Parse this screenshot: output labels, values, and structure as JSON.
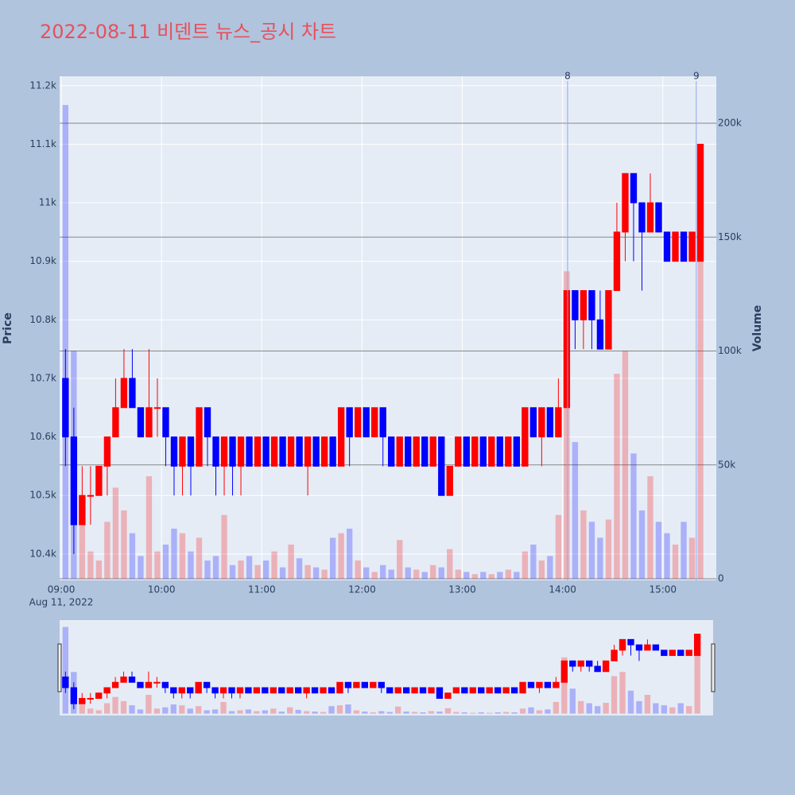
{
  "chart_data": {
    "type": "candlestick",
    "title": "2022-08-11 비덴트 뉴스_공시 차트",
    "y_label": "Price",
    "y2_label": "Volume",
    "x_date_label": "Aug 11, 2022",
    "increasing_color": "#ff0000",
    "decreasing_color": "#0000ff",
    "x": [
      "09:00",
      "09:05",
      "09:10",
      "09:15",
      "09:20",
      "09:25",
      "09:30",
      "09:35",
      "09:40",
      "09:45",
      "09:50",
      "09:55",
      "10:00",
      "10:05",
      "10:10",
      "10:15",
      "10:20",
      "10:25",
      "10:30",
      "10:35",
      "10:40",
      "10:45",
      "10:50",
      "10:55",
      "11:00",
      "11:05",
      "11:10",
      "11:15",
      "11:20",
      "11:25",
      "11:30",
      "11:35",
      "11:40",
      "11:45",
      "11:50",
      "11:55",
      "12:00",
      "12:05",
      "12:10",
      "12:15",
      "12:20",
      "12:25",
      "12:30",
      "12:35",
      "12:40",
      "12:45",
      "12:50",
      "12:55",
      "13:00",
      "13:05",
      "13:10",
      "13:15",
      "13:20",
      "13:25",
      "13:30",
      "13:35",
      "13:40",
      "13:45",
      "13:50",
      "13:55",
      "14:00",
      "14:05",
      "14:10",
      "14:15",
      "14:20",
      "14:25",
      "14:30",
      "14:35",
      "14:40",
      "14:45",
      "14:50",
      "14:55",
      "15:00",
      "15:05",
      "15:10",
      "15:15",
      "15:20"
    ],
    "open": [
      10700,
      10600,
      10450,
      10500,
      10500,
      10550,
      10600,
      10650,
      10700,
      10650,
      10600,
      10650,
      10650,
      10600,
      10550,
      10600,
      10550,
      10650,
      10600,
      10550,
      10600,
      10550,
      10600,
      10550,
      10600,
      10550,
      10600,
      10550,
      10600,
      10550,
      10600,
      10550,
      10600,
      10550,
      10650,
      10600,
      10650,
      10600,
      10650,
      10600,
      10550,
      10600,
      10550,
      10600,
      10550,
      10600,
      10500,
      10550,
      10600,
      10550,
      10600,
      10550,
      10600,
      10550,
      10600,
      10550,
      10650,
      10600,
      10650,
      10600,
      10650,
      10850,
      10800,
      10850,
      10800,
      10750,
      10850,
      10950,
      11050,
      11000,
      10950,
      11000,
      10950,
      10900,
      10950,
      10900,
      10900
    ],
    "high": [
      10750,
      10650,
      10550,
      10550,
      10550,
      10600,
      10700,
      10750,
      10750,
      10650,
      10750,
      10700,
      10650,
      10600,
      10600,
      10600,
      10650,
      10650,
      10600,
      10600,
      10600,
      10600,
      10600,
      10600,
      10600,
      10600,
      10600,
      10600,
      10600,
      10600,
      10600,
      10600,
      10600,
      10650,
      10650,
      10650,
      10650,
      10650,
      10650,
      10600,
      10600,
      10600,
      10600,
      10600,
      10600,
      10600,
      10550,
      10600,
      10600,
      10600,
      10600,
      10600,
      10600,
      10600,
      10600,
      10650,
      10650,
      10650,
      10650,
      10700,
      10850,
      10850,
      10850,
      10850,
      10850,
      10850,
      11000,
      11050,
      11050,
      11000,
      11050,
      11000,
      10950,
      10950,
      10950,
      10950,
      11100
    ],
    "low": [
      10550,
      10400,
      10450,
      10450,
      10500,
      10500,
      10600,
      10650,
      10650,
      10600,
      10600,
      10600,
      10550,
      10500,
      10500,
      10500,
      10550,
      10550,
      10500,
      10500,
      10500,
      10500,
      10550,
      10550,
      10550,
      10550,
      10550,
      10550,
      10550,
      10500,
      10550,
      10550,
      10550,
      10550,
      10550,
      10600,
      10600,
      10600,
      10550,
      10550,
      10550,
      10550,
      10550,
      10550,
      10550,
      10500,
      10500,
      10550,
      10550,
      10550,
      10550,
      10550,
      10550,
      10550,
      10550,
      10550,
      10600,
      10550,
      10600,
      10600,
      10650,
      10750,
      10750,
      10750,
      10750,
      10750,
      10850,
      10900,
      10900,
      10850,
      10950,
      10950,
      10900,
      10900,
      10900,
      10900,
      10900
    ],
    "close": [
      10600,
      10450,
      10500,
      10500,
      10550,
      10600,
      10650,
      10700,
      10650,
      10600,
      10650,
      10650,
      10600,
      10550,
      10600,
      10550,
      10650,
      10600,
      10550,
      10600,
      10550,
      10600,
      10550,
      10600,
      10550,
      10600,
      10550,
      10600,
      10550,
      10600,
      10550,
      10600,
      10550,
      10650,
      10600,
      10650,
      10600,
      10650,
      10600,
      10550,
      10600,
      10550,
      10600,
      10550,
      10600,
      10500,
      10550,
      10600,
      10550,
      10600,
      10550,
      10600,
      10550,
      10600,
      10550,
      10650,
      10600,
      10650,
      10600,
      10650,
      10850,
      10800,
      10850,
      10800,
      10750,
      10850,
      10950,
      11050,
      11000,
      10950,
      11000,
      10950,
      10900,
      10950,
      10900,
      10950,
      11100
    ],
    "volume": [
      208000,
      100000,
      35000,
      12000,
      8000,
      25000,
      40000,
      30000,
      20000,
      10000,
      45000,
      12000,
      15000,
      22000,
      20000,
      12000,
      18000,
      8000,
      10000,
      28000,
      6000,
      8000,
      10000,
      6000,
      8000,
      12000,
      5000,
      15000,
      9000,
      6000,
      5000,
      4000,
      18000,
      20000,
      22000,
      8000,
      5000,
      3000,
      6000,
      4000,
      17000,
      5000,
      4000,
      3000,
      6000,
      5000,
      13000,
      4000,
      3000,
      2000,
      3000,
      2000,
      3000,
      4000,
      3000,
      12000,
      15000,
      8000,
      10000,
      28000,
      135000,
      60000,
      30000,
      25000,
      18000,
      26000,
      90000,
      100000,
      55000,
      30000,
      45000,
      25000,
      20000,
      15000,
      25000,
      18000,
      145000
    ],
    "xlim": [
      "08:59",
      "15:32"
    ],
    "xticks": [
      "09:00",
      "10:00",
      "11:00",
      "12:00",
      "13:00",
      "14:00",
      "15:00"
    ],
    "ylim": [
      10355,
      11216
    ],
    "yticks": [
      {
        "value": 10400,
        "label": "10.4k"
      },
      {
        "value": 10500,
        "label": "10.5k"
      },
      {
        "value": 10600,
        "label": "10.6k"
      },
      {
        "value": 10700,
        "label": "10.7k"
      },
      {
        "value": 10800,
        "label": "10.8k"
      },
      {
        "value": 10900,
        "label": "10.9k"
      },
      {
        "value": 11000,
        "label": "11k"
      },
      {
        "value": 11100,
        "label": "11.1k"
      },
      {
        "value": 11200,
        "label": "11.2k"
      }
    ],
    "y2lim": [
      -700,
      220600
    ],
    "y2ticks": [
      0,
      {
        "value": 50000,
        "label": "50k"
      },
      {
        "value": 100000,
        "label": "100k"
      },
      {
        "value": 150000,
        "label": "150k"
      },
      {
        "value": 200000,
        "label": "200k"
      }
    ],
    "annotations": [
      {
        "x": "14:03",
        "text": "8"
      },
      {
        "x": "15:20",
        "text": "9"
      }
    ],
    "grid": true
  }
}
